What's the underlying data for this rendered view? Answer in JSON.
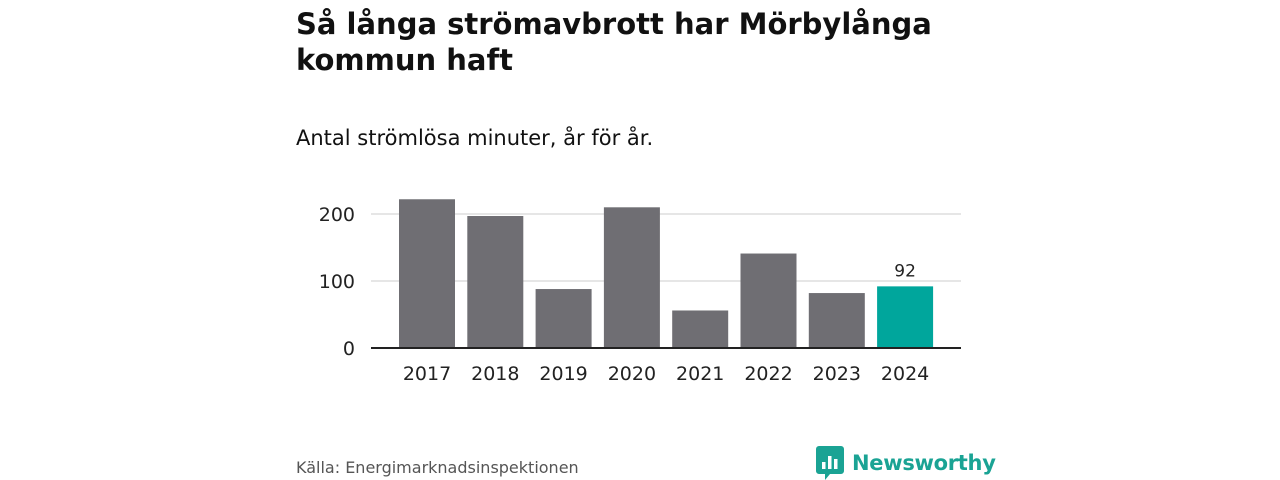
{
  "title": "Så långa strömavbrott har Mörbylånga kommun haft",
  "subtitle": "Antal strömlösa minuter, år för år.",
  "source": "Källa: Energimarknadsinspektionen",
  "brand": {
    "name": "Newsworthy",
    "color": "#1aa394"
  },
  "chart_data": {
    "type": "bar",
    "title": "Så långa strömavbrott har Mörbylånga kommun haft",
    "subtitle": "Antal strömlösa minuter, år för år.",
    "xlabel": "",
    "ylabel": "",
    "categories": [
      "2017",
      "2018",
      "2019",
      "2020",
      "2021",
      "2022",
      "2023",
      "2024"
    ],
    "values": [
      222,
      197,
      88,
      210,
      56,
      141,
      82,
      92
    ],
    "ylim": [
      0,
      230
    ],
    "yticks": [
      0,
      100,
      200
    ],
    "grid": true,
    "highlight_index": 7,
    "data_labels": {
      "7": "92"
    },
    "colors": {
      "bar": "#6f6e73",
      "highlight": "#00a69c",
      "grid": "#dddddd",
      "axis": "#222222"
    }
  }
}
